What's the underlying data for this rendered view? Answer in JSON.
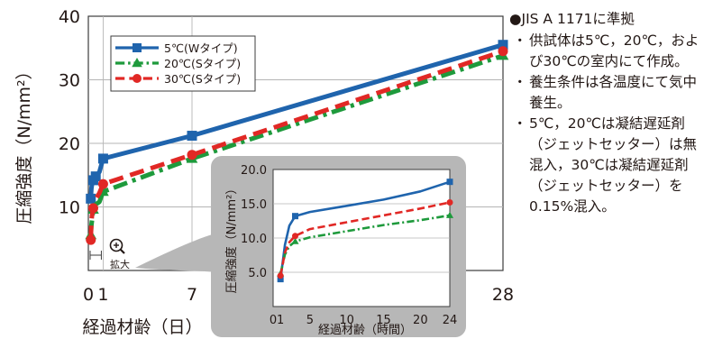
{
  "notes": {
    "standard": "●JIS A 1171に準拠",
    "items": [
      "供試体は5℃，20℃，および30℃の室内にて作成。",
      "養生条件は各温度にて気中養生。",
      "5℃，20℃は凝結遅延剤（ジェットセッター）は無混入，30℃は凝結遅延剤（ジェットセッター）を0.15%混入。"
    ],
    "bullet": "・"
  },
  "zoom_label": "拡大",
  "chart_data": [
    {
      "type": "line",
      "xlabel": "経過材齢（日）",
      "ylabel": "圧縮強度（N/mm²）",
      "xlim": [
        0,
        28
      ],
      "ylim": [
        0,
        40
      ],
      "x_ticks": [
        0,
        1,
        7,
        28
      ],
      "x_tick_labels": [
        "0",
        "1",
        "7",
        "28"
      ],
      "y_ticks": [
        10,
        20,
        30,
        40
      ],
      "y_tick_labels": [
        "10",
        "20",
        "30",
        "40"
      ],
      "legend_position": "top-left",
      "series": [
        {
          "name": "5℃(Wタイプ)",
          "color": "#1f64ad",
          "dash": "solid",
          "marker": "square",
          "points": [
            [
              0.167,
              11.3
            ],
            [
              0.208,
              12.9
            ],
            [
              0.25,
              13.6
            ],
            [
              0.333,
              14.2
            ],
            [
              0.5,
              14.8
            ],
            [
              0.75,
              15.5
            ],
            [
              1,
              17.6
            ],
            [
              7,
              21.2
            ],
            [
              28,
              35.5
            ]
          ],
          "marker_x": [
            0.167,
            0.333,
            0.5,
            1,
            7,
            28
          ]
        },
        {
          "name": "20℃(Sタイプ)",
          "color": "#1e9a3c",
          "dash": "dashdot",
          "marker": "triangle",
          "points": [
            [
              0.167,
              5.6
            ],
            [
              0.208,
              7.1
            ],
            [
              0.333,
              9.6
            ],
            [
              0.5,
              10.4
            ],
            [
              0.75,
              10.8
            ],
            [
              1,
              12.4
            ],
            [
              7,
              17.6
            ],
            [
              28,
              33.8
            ]
          ],
          "marker_x": [
            0.167,
            0.333,
            1,
            7,
            28
          ]
        },
        {
          "name": "30℃(Sタイプ)",
          "color": "#e12825",
          "dash": "dash",
          "marker": "circle",
          "points": [
            [
              0.167,
              4.8
            ],
            [
              0.208,
              7.7
            ],
            [
              0.25,
              8.7
            ],
            [
              0.333,
              9.8
            ],
            [
              0.5,
              11.2
            ],
            [
              0.75,
              12.2
            ],
            [
              1,
              13.6
            ],
            [
              7,
              18.2
            ],
            [
              28,
              34.5
            ]
          ],
          "marker_x": [
            0.167,
            0.333,
            1,
            7,
            28
          ]
        }
      ]
    },
    {
      "type": "line",
      "xlabel": "経過材齢（時間）",
      "ylabel": "圧縮強度（N/mm²）",
      "xlim": [
        0,
        24
      ],
      "ylim": [
        0,
        20
      ],
      "x_ticks": [
        0,
        1,
        5,
        10,
        15,
        20,
        24
      ],
      "x_tick_labels": [
        "0",
        "1",
        "5",
        "10",
        "15",
        "20",
        "24"
      ],
      "y_ticks": [
        5,
        10,
        15,
        20
      ],
      "y_tick_labels": [
        "5.0",
        "10.0",
        "15.0",
        "20.0"
      ],
      "series": [
        {
          "color": "#1f64ad",
          "dash": "solid",
          "marker": "square",
          "points": [
            [
              1,
              4.0
            ],
            [
              1.6,
              9.0
            ],
            [
              2.2,
              11.8
            ],
            [
              3,
              13.2
            ],
            [
              5,
              13.8
            ],
            [
              10,
              14.7
            ],
            [
              15,
              15.6
            ],
            [
              20,
              16.8
            ],
            [
              24,
              18.2
            ]
          ],
          "marker_x": [
            1,
            3,
            24
          ]
        },
        {
          "color": "#1e9a3c",
          "dash": "dashdot",
          "marker": "triangle",
          "points": [
            [
              1,
              4.8
            ],
            [
              1.6,
              7.6
            ],
            [
              2.2,
              8.8
            ],
            [
              3,
              9.5
            ],
            [
              5,
              10.1
            ],
            [
              10,
              11.0
            ],
            [
              15,
              11.9
            ],
            [
              20,
              12.6
            ],
            [
              24,
              13.3
            ]
          ],
          "marker_x": [
            1,
            3,
            24
          ]
        },
        {
          "color": "#e12825",
          "dash": "dash",
          "marker": "circle",
          "points": [
            [
              1,
              4.5
            ],
            [
              1.6,
              7.9
            ],
            [
              2.2,
              9.4
            ],
            [
              3,
              10.3
            ],
            [
              5,
              11.3
            ],
            [
              10,
              12.3
            ],
            [
              15,
              13.3
            ],
            [
              20,
              14.3
            ],
            [
              24,
              15.2
            ]
          ],
          "marker_x": [
            1,
            3,
            24
          ]
        }
      ]
    }
  ]
}
